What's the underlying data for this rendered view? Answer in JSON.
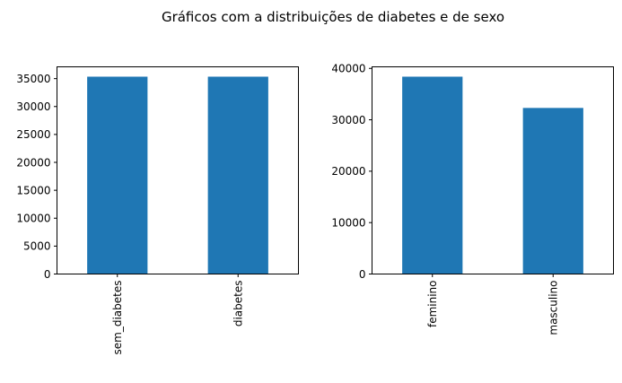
{
  "figure": {
    "suptitle": "Gráficos com a distribuições de diabetes e de sexo"
  },
  "colors": {
    "bar": "#1f77b4",
    "background": "#ffffff",
    "axis": "#000000"
  },
  "chart_data": [
    {
      "type": "bar",
      "title": "",
      "xlabel": "",
      "ylabel": "",
      "categories": [
        "sem_diabetes",
        "diabetes"
      ],
      "values": [
        35346,
        35346
      ],
      "ylim": [
        0,
        37113
      ],
      "yticks": [
        0,
        5000,
        10000,
        15000,
        20000,
        25000,
        30000,
        35000
      ],
      "grid": false,
      "xtick_rotation": 90
    },
    {
      "type": "bar",
      "title": "",
      "xlabel": "",
      "ylabel": "",
      "categories": [
        "feminino",
        "masculino"
      ],
      "values": [
        38386,
        32306
      ],
      "ylim": [
        0,
        40305
      ],
      "yticks": [
        0,
        10000,
        20000,
        30000,
        40000
      ],
      "grid": false,
      "xtick_rotation": 90
    }
  ]
}
